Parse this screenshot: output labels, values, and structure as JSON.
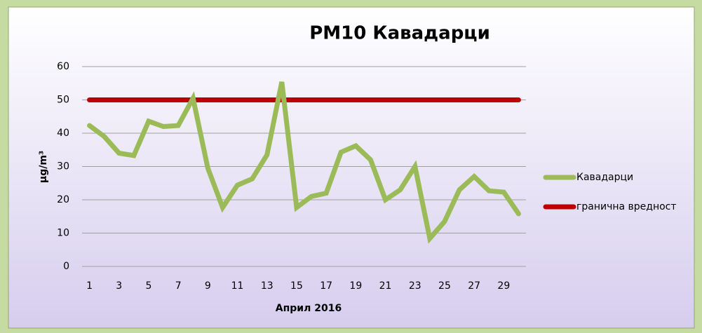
{
  "chart_data": {
    "type": "line",
    "title": "PM10 Кавадарци",
    "x_label": "Април 2016",
    "y_label": "µg/m³",
    "categories": [
      "1",
      null,
      "3",
      null,
      "5",
      null,
      "7",
      null,
      "9",
      null,
      "11",
      null,
      "13",
      null,
      "15",
      null,
      "17",
      null,
      "19",
      null,
      "21",
      null,
      "23",
      null,
      "25",
      null,
      "27",
      null,
      "29",
      null
    ],
    "series": [
      {
        "name": "Кавадарци",
        "color": "#9bbb59",
        "values": [
          42.3,
          39,
          34,
          33.3,
          43.6,
          42,
          42.3,
          50.5,
          29.5,
          17.7,
          24.4,
          26.3,
          33.5,
          55.4,
          17.7,
          21,
          22,
          34.3,
          36.2,
          32,
          20,
          23,
          30,
          8.4,
          13.5,
          23,
          27,
          22.7,
          22.3,
          15.8
        ]
      },
      {
        "name": "гранична вредност",
        "color": "#c00000",
        "values": [
          50,
          50,
          50,
          50,
          50,
          50,
          50,
          50,
          50,
          50,
          50,
          50,
          50,
          50,
          50,
          50,
          50,
          50,
          50,
          50,
          50,
          50,
          50,
          50,
          50,
          50,
          50,
          50,
          50,
          50
        ]
      }
    ],
    "ylim": [
      0,
      60
    ],
    "yticks": [
      0,
      10,
      20,
      30,
      40,
      50,
      60
    ],
    "grid": true,
    "legend": "right"
  }
}
